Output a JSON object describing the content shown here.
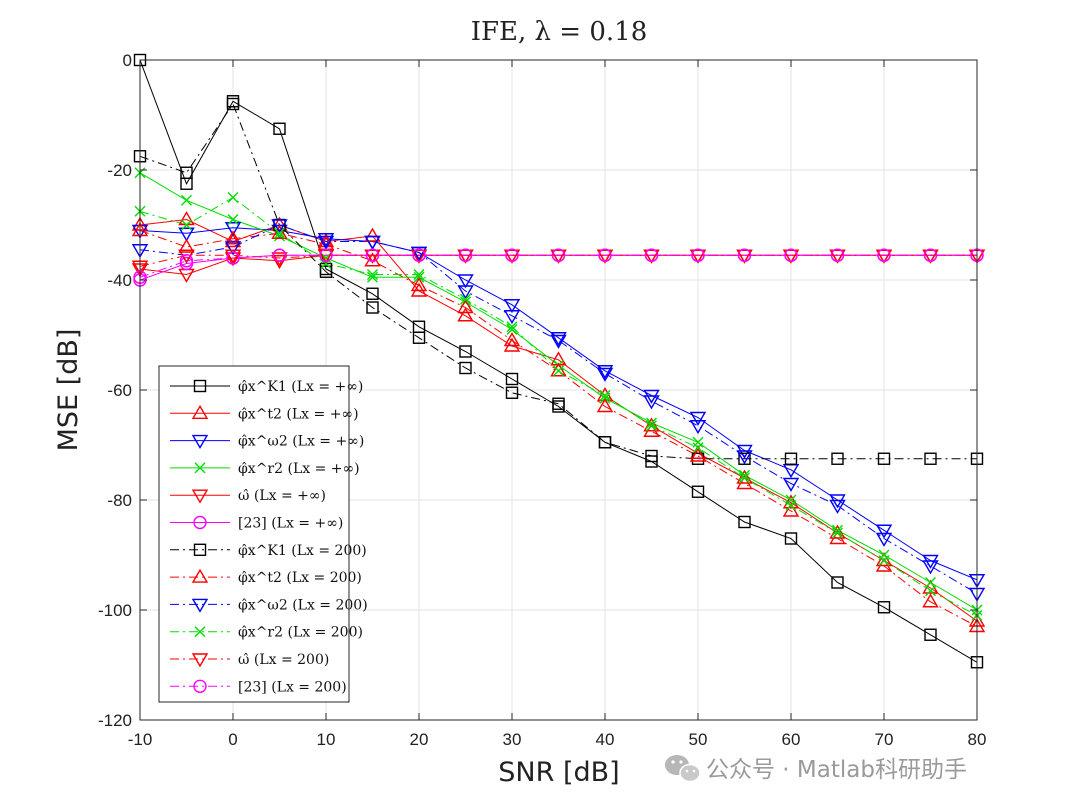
{
  "chart_data": {
    "type": "line",
    "title": "IFE, λ = 0.18",
    "xlabel": "SNR [dB]",
    "ylabel": "MSE [dB]",
    "xlim": [
      -10,
      80
    ],
    "ylim": [
      -120,
      0
    ],
    "xticks": [
      "-10",
      "0",
      "10",
      "20",
      "30",
      "40",
      "50",
      "60",
      "70",
      "80"
    ],
    "yticks": [
      "0",
      "-20",
      "-40",
      "-60",
      "-80",
      "-100",
      "-120"
    ],
    "grid": true,
    "legend_position": "bottom-left",
    "x": [
      -10,
      -5,
      0,
      5,
      10,
      15,
      20,
      25,
      30,
      35,
      40,
      45,
      50,
      55,
      60,
      65,
      70,
      75,
      80
    ],
    "series": [
      {
        "name": "φ̂x^K1 (Lx = +∞)",
        "color": "#000000",
        "marker": "square",
        "dash": "solid",
        "values": [
          0,
          -22.5,
          -7.5,
          -12.5,
          -38,
          -42.5,
          -48.5,
          -53,
          -58,
          -63,
          -69.5,
          -73,
          -78.5,
          -84,
          -87,
          -95,
          -99.5,
          -104.5,
          -109.5
        ]
      },
      {
        "name": "φ̂x^t2 (Lx = +∞)",
        "color": "#ff0000",
        "marker": "triangle-up",
        "dash": "solid",
        "values": [
          -30,
          -29,
          -33,
          -30,
          -33,
          -32,
          -42,
          -46.5,
          -52,
          -54.5,
          -61,
          -66.5,
          -71.5,
          -76,
          -80.5,
          -86,
          -91,
          -96,
          -102
        ]
      },
      {
        "name": "φ̂x^ω2 (Lx = +∞)",
        "color": "#0000ff",
        "marker": "triangle-down",
        "dash": "solid",
        "values": [
          -31,
          -31.5,
          -30.5,
          -31,
          -32.5,
          -33,
          -35,
          -40,
          -44.5,
          -50.5,
          -56.5,
          -61,
          -65,
          -71,
          -74.5,
          -80,
          -85.5,
          -91,
          -94.5
        ]
      },
      {
        "name": "φ̂x^r2 (Lx = +∞)",
        "color": "#00dd00",
        "marker": "x",
        "dash": "solid",
        "values": [
          -20.5,
          -25.5,
          -29,
          -32,
          -36,
          -39.5,
          -39.5,
          -44,
          -49,
          -55.5,
          -61.5,
          -66,
          -69.5,
          -75.5,
          -80,
          -85.5,
          -90,
          -95,
          -100
        ]
      },
      {
        "name": "ω̂ (Lx = +∞)",
        "color": "#ff0000",
        "marker": "triangle-down",
        "dash": "solid",
        "values": [
          -38,
          -39,
          -36,
          -36.5,
          -35.5,
          -35.5,
          -35.5,
          -35.5,
          -35.5,
          -35.5,
          -35.5,
          -35.5,
          -35.5,
          -35.5,
          -35.5,
          -35.5,
          -35.5,
          -35.5,
          -35.5
        ]
      },
      {
        "name": "[23] (Lx = +∞)",
        "color": "#ff00ff",
        "marker": "circle",
        "dash": "solid",
        "values": [
          -40,
          -37,
          -36,
          -35.5,
          -35.5,
          -35.5,
          -35.5,
          -35.5,
          -35.5,
          -35.5,
          -35.5,
          -35.5,
          -35.5,
          -35.5,
          -35.5,
          -35.5,
          -35.5,
          -35.5,
          -35.5
        ]
      },
      {
        "name": "φ̂x^K1 (Lx = 200)",
        "color": "#000000",
        "marker": "square",
        "dash": "dashdot",
        "values": [
          -17.5,
          -20.5,
          -8,
          -30,
          -38.5,
          -45,
          -50.5,
          -56,
          -60.5,
          -62.5,
          -69.5,
          -72,
          -72.5,
          -72.5,
          -72.5,
          -72.5,
          -72.5,
          -72.5,
          -72.5
        ]
      },
      {
        "name": "φ̂x^t2 (Lx = 200)",
        "color": "#ff0000",
        "marker": "triangle-up",
        "dash": "dashdot",
        "values": [
          -31,
          -34,
          -32.5,
          -31.5,
          -33.5,
          -36.5,
          -41,
          -45,
          -51,
          -56.5,
          -63,
          -67.5,
          -72,
          -77,
          -82,
          -87,
          -92,
          -98.5,
          -103
        ]
      },
      {
        "name": "φ̂x^ω2 (Lx = 200)",
        "color": "#0000ff",
        "marker": "triangle-down",
        "dash": "dashdot",
        "values": [
          -34.5,
          -35.5,
          -34,
          -30,
          -33,
          -33,
          -35,
          -42,
          -46.5,
          -51,
          -57,
          -62,
          -66.5,
          -72,
          -77,
          -81,
          -87,
          -92,
          -97
        ]
      },
      {
        "name": "φ̂x^r2 (Lx = 200)",
        "color": "#00dd00",
        "marker": "x",
        "dash": "dashdot",
        "values": [
          -27.5,
          -30,
          -25,
          -31.5,
          -37,
          -39,
          -39,
          -43.5,
          -48.5,
          -56.5,
          -61,
          -66.5,
          -70.5,
          -76,
          -81,
          -86,
          -91,
          -96.5,
          -101
        ]
      },
      {
        "name": "ω̂ (Lx = 200)",
        "color": "#ff0000",
        "marker": "triangle-down",
        "dash": "dashdot",
        "values": [
          -37.5,
          -35.5,
          -35.5,
          -36,
          -35.5,
          -35.5,
          -35.5,
          -35.5,
          -35.5,
          -35.5,
          -35.5,
          -35.5,
          -35.5,
          -35.5,
          -35.5,
          -35.5,
          -35.5,
          -35.5,
          -35.5
        ]
      },
      {
        "name": "[23] (Lx = 200)",
        "color": "#ff00ff",
        "marker": "circle",
        "dash": "dashdot",
        "values": [
          -39.5,
          -36.5,
          -36,
          -35.5,
          -35.5,
          -35.5,
          -35.5,
          -35.5,
          -35.5,
          -35.5,
          -35.5,
          -35.5,
          -35.5,
          -35.5,
          -35.5,
          -35.5,
          -35.5,
          -35.5,
          -35.5
        ]
      }
    ]
  },
  "watermark": {
    "icon": "wechat-icon",
    "text": "公众号 · Matlab科研助手",
    "color": "#9a9a9a"
  }
}
